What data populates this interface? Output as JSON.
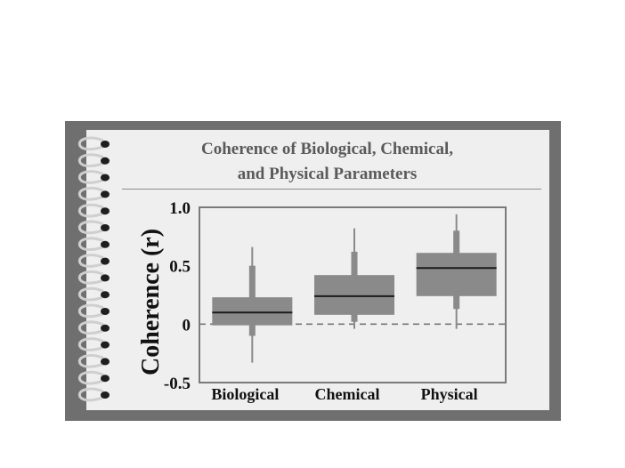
{
  "chart_data": {
    "type": "box",
    "title": "Coherence of Biological, Chemical, and Physical Parameters",
    "title_lines": [
      "Coherence of Biological, Chemical,",
      "and Physical Parameters"
    ],
    "ylabel": "Coherence (r)",
    "ylim": [
      -0.5,
      1.0
    ],
    "yticks": [
      1.0,
      0.5,
      0,
      -0.5
    ],
    "ytick_labels": [
      "1.0",
      "0.5",
      "0",
      "-0.5"
    ],
    "reference_line": {
      "y": 0,
      "style": "dashed"
    },
    "categories": [
      "Biological",
      "Chemical",
      "Physical"
    ],
    "boxes": [
      {
        "category": "Biological",
        "whisker_low": -0.33,
        "lower_whisker_thick_end": -0.1,
        "q1": -0.01,
        "median": 0.1,
        "q3": 0.23,
        "upper_whisker_thick_end": 0.5,
        "whisker_high": 0.66
      },
      {
        "category": "Chemical",
        "whisker_low": -0.04,
        "lower_whisker_thick_end": 0.02,
        "q1": 0.08,
        "median": 0.24,
        "q3": 0.42,
        "upper_whisker_thick_end": 0.62,
        "whisker_high": 0.82
      },
      {
        "category": "Physical",
        "whisker_low": -0.04,
        "lower_whisker_thick_end": 0.13,
        "q1": 0.24,
        "median": 0.48,
        "q3": 0.61,
        "upper_whisker_thick_end": 0.8,
        "whisker_high": 0.94
      }
    ],
    "colors": {
      "box": "#8a8a8a",
      "median": "#1a1a1a",
      "whisker": "#8a8a8a",
      "frame": "#7a7a7a",
      "background": "#efefef"
    },
    "grid": false,
    "legend": "none"
  }
}
